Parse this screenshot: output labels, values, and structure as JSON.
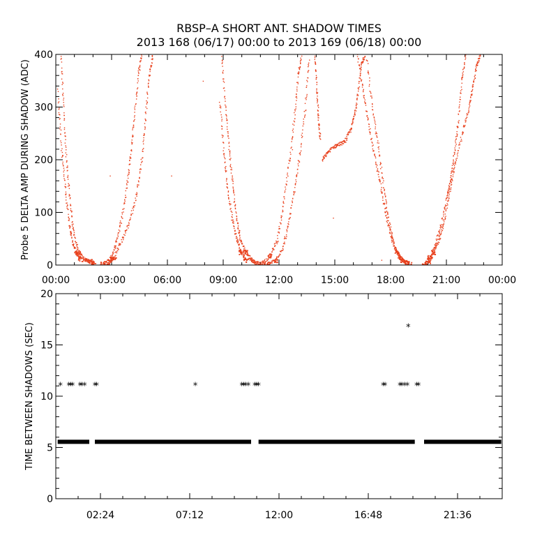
{
  "title": "RBSP–A SHORT ANT. SHADOW TIMES",
  "subtitle": "2013 168 (06/17) 00:00 to 2013 169 (06/18) 00:00",
  "chart_data": [
    {
      "type": "scatter",
      "ylabel": "Probe 5 DELTA AMP DURING SHADOW (ADC)",
      "xlabel": "",
      "x_unit": "hours since 2013-06-17 00:00",
      "xlim": [
        0,
        24
      ],
      "ylim": [
        0,
        400
      ],
      "xtick_labels": [
        "00:00",
        "03:00",
        "06:00",
        "09:00",
        "12:00",
        "15:00",
        "18:00",
        "21:00",
        "00:00"
      ],
      "xtick_values": [
        0,
        3,
        6,
        9,
        12,
        15,
        18,
        21,
        24
      ],
      "ytick_values": [
        0,
        100,
        200,
        300,
        400
      ],
      "color": "#e8401c",
      "grid": false,
      "traces": [
        {
          "name": "",
          "points": [
            [
              0.25,
              400
            ],
            [
              0.4,
              300
            ],
            [
              0.55,
              200
            ],
            [
              0.75,
              120
            ],
            [
              0.95,
              60
            ],
            [
              1.2,
              25
            ],
            [
              1.5,
              12
            ],
            [
              1.8,
              8
            ],
            [
              2.0,
              5
            ]
          ]
        },
        {
          "name": "",
          "points": [
            [
              0.1,
              330
            ],
            [
              0.3,
              220
            ],
            [
              0.5,
              140
            ],
            [
              0.7,
              80
            ],
            [
              0.9,
              40
            ],
            [
              1.1,
              22
            ],
            [
              1.3,
              12
            ]
          ]
        },
        {
          "name": "",
          "points": [
            [
              2.5,
              3
            ],
            [
              2.9,
              12
            ],
            [
              3.2,
              40
            ],
            [
              3.5,
              85
            ],
            [
              3.8,
              150
            ],
            [
              4.0,
              210
            ],
            [
              4.2,
              280
            ],
            [
              4.4,
              360
            ],
            [
              4.6,
              400
            ]
          ]
        },
        {
          "name": "",
          "points": [
            [
              2.8,
              3
            ],
            [
              3.1,
              15
            ],
            [
              3.5,
              45
            ],
            [
              3.9,
              80
            ],
            [
              4.3,
              130
            ],
            [
              4.6,
              200
            ],
            [
              4.8,
              280
            ],
            [
              5.0,
              360
            ],
            [
              5.2,
              400
            ]
          ]
        },
        {
          "name": "",
          "points": [
            [
              8.9,
              400
            ],
            [
              9.1,
              300
            ],
            [
              9.3,
              220
            ],
            [
              9.5,
              150
            ],
            [
              9.7,
              90
            ],
            [
              9.9,
              50
            ],
            [
              10.2,
              25
            ],
            [
              10.5,
              10
            ],
            [
              10.8,
              4
            ]
          ]
        },
        {
          "name": "",
          "points": [
            [
              8.8,
              310
            ],
            [
              9.0,
              220
            ],
            [
              9.2,
              150
            ],
            [
              9.45,
              90
            ],
            [
              9.7,
              50
            ],
            [
              9.95,
              25
            ],
            [
              10.2,
              10
            ]
          ]
        },
        {
          "name": "",
          "points": [
            [
              11.4,
              3
            ],
            [
              11.8,
              10
            ],
            [
              12.2,
              35
            ],
            [
              12.5,
              80
            ],
            [
              12.8,
              140
            ],
            [
              13.1,
              210
            ],
            [
              13.4,
              300
            ],
            [
              13.6,
              400
            ]
          ]
        },
        {
          "name": "",
          "points": [
            [
              11.1,
              5
            ],
            [
              11.5,
              18
            ],
            [
              11.9,
              50
            ],
            [
              12.2,
              110
            ],
            [
              12.5,
              190
            ],
            [
              12.8,
              280
            ],
            [
              13.0,
              360
            ],
            [
              13.2,
              400
            ]
          ]
        },
        {
          "name": "",
          "points": [
            [
              14.3,
              200
            ],
            [
              14.6,
              215
            ],
            [
              14.9,
              225
            ],
            [
              15.2,
              230
            ],
            [
              15.5,
              235
            ],
            [
              15.8,
              255
            ],
            [
              16.0,
              280
            ],
            [
              16.2,
              320
            ],
            [
              16.4,
              380
            ],
            [
              16.6,
              400
            ]
          ]
        },
        {
          "name": "",
          "points": [
            [
              13.9,
              400
            ],
            [
              14.0,
              340
            ],
            [
              14.1,
              280
            ],
            [
              14.2,
              240
            ]
          ]
        },
        {
          "name": "",
          "points": [
            [
              16.2,
              400
            ],
            [
              16.5,
              330
            ],
            [
              16.8,
              270
            ],
            [
              17.1,
              210
            ],
            [
              17.4,
              160
            ],
            [
              17.7,
              100
            ],
            [
              18.0,
              55
            ],
            [
              18.3,
              25
            ],
            [
              18.6,
              10
            ],
            [
              19.0,
              4
            ]
          ]
        },
        {
          "name": "",
          "points": [
            [
              16.7,
              390
            ],
            [
              17.0,
              300
            ],
            [
              17.3,
              230
            ],
            [
              17.6,
              150
            ],
            [
              17.9,
              80
            ],
            [
              18.2,
              35
            ],
            [
              18.5,
              14
            ],
            [
              18.8,
              6
            ]
          ]
        },
        {
          "name": "",
          "points": [
            [
              19.8,
              3
            ],
            [
              20.1,
              15
            ],
            [
              20.4,
              40
            ],
            [
              20.7,
              80
            ],
            [
              21.0,
              130
            ],
            [
              21.2,
              160
            ],
            [
              21.4,
              210
            ],
            [
              21.6,
              270
            ],
            [
              21.8,
              350
            ],
            [
              22.0,
              400
            ]
          ]
        },
        {
          "name": "",
          "points": [
            [
              20.0,
              5
            ],
            [
              20.3,
              25
            ],
            [
              20.6,
              50
            ],
            [
              20.9,
              90
            ],
            [
              21.2,
              150
            ],
            [
              21.5,
              200
            ],
            [
              21.9,
              260
            ],
            [
              22.2,
              300
            ],
            [
              22.4,
              340
            ],
            [
              22.6,
              380
            ],
            [
              22.8,
              400
            ]
          ]
        }
      ],
      "isolated_points": [
        [
          2.9,
          170
        ],
        [
          6.2,
          170
        ],
        [
          7.9,
          350
        ],
        [
          12.7,
          220
        ],
        [
          14.9,
          90
        ],
        [
          17.5,
          10
        ]
      ]
    },
    {
      "type": "scatter",
      "ylabel": "TIME BETWEEN SHADOWS (SEC)",
      "xlabel": "",
      "x_unit": "hours since 2013-06-17 00:00",
      "xlim": [
        0,
        24
      ],
      "ylim": [
        0,
        20
      ],
      "xtick_labels": [
        "02:24",
        "07:12",
        "12:00",
        "16:48",
        "21:36"
      ],
      "xtick_values": [
        2.4,
        7.2,
        12.0,
        16.8,
        21.6
      ],
      "ytick_values": [
        0,
        5,
        10,
        15,
        20
      ],
      "color": "#000000",
      "marker": "asterisk",
      "baseline_y": 5.55,
      "baseline_ranges": [
        [
          0.1,
          1.8
        ],
        [
          2.1,
          10.5
        ],
        [
          10.9,
          19.3
        ],
        [
          19.8,
          23.95
        ]
      ],
      "points": [
        [
          0.25,
          11
        ],
        [
          0.7,
          11
        ],
        [
          0.8,
          11
        ],
        [
          0.9,
          11
        ],
        [
          1.3,
          11
        ],
        [
          1.4,
          11
        ],
        [
          1.55,
          11
        ],
        [
          2.1,
          11
        ],
        [
          2.2,
          11
        ],
        [
          7.5,
          11
        ],
        [
          10.0,
          11
        ],
        [
          10.1,
          11
        ],
        [
          10.2,
          11
        ],
        [
          10.35,
          11
        ],
        [
          10.7,
          11
        ],
        [
          10.8,
          11
        ],
        [
          10.9,
          11
        ],
        [
          17.6,
          11
        ],
        [
          17.7,
          11
        ],
        [
          18.5,
          11
        ],
        [
          18.6,
          11
        ],
        [
          18.75,
          11
        ],
        [
          18.9,
          11
        ],
        [
          19.4,
          11
        ],
        [
          19.5,
          11
        ],
        [
          18.95,
          16.7
        ]
      ]
    }
  ]
}
